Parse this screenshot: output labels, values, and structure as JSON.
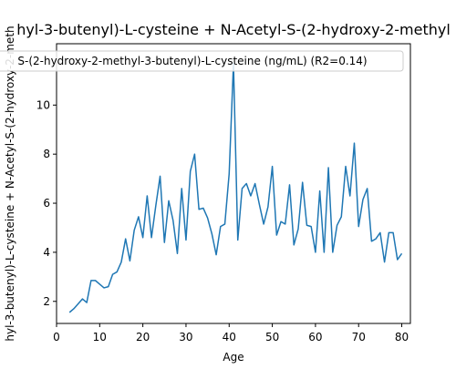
{
  "chart_data": {
    "type": "line",
    "title": "hyl-3-butenyl)-L-cysteine + N-Acetyl-S-(2-hydroxy-2-methyl",
    "xlabel": "Age",
    "ylabel": "hyl-3-butenyl)-L-cysteine + N-Acetyl-S-(2-hydroxy-2-meth",
    "xlim": [
      0,
      82
    ],
    "ylim": [
      1.1,
      12.5
    ],
    "x_ticks": [
      0,
      10,
      20,
      30,
      40,
      50,
      60,
      70,
      80
    ],
    "y_ticks": [
      2,
      4,
      6,
      8,
      10
    ],
    "grid": false,
    "legend_position": "top-right",
    "series": [
      {
        "name": "S-(2-hydroxy-2-methyl-3-butenyl)-L-cysteine (ng/mL) (R2=0.14)",
        "color": "#1f77b4",
        "x": [
          3,
          4,
          5,
          6,
          7,
          8,
          9,
          10,
          11,
          12,
          13,
          14,
          15,
          16,
          17,
          18,
          19,
          20,
          21,
          22,
          23,
          24,
          25,
          26,
          27,
          28,
          29,
          30,
          31,
          32,
          33,
          34,
          35,
          36,
          37,
          38,
          39,
          40,
          41,
          42,
          43,
          44,
          45,
          46,
          47,
          48,
          49,
          50,
          51,
          52,
          53,
          54,
          55,
          56,
          57,
          58,
          59,
          60,
          61,
          62,
          63,
          64,
          65,
          66,
          67,
          68,
          69,
          70,
          71,
          72,
          73,
          74,
          75,
          76,
          77,
          78,
          79,
          80
        ],
        "y": [
          1.55,
          1.7,
          1.9,
          2.1,
          1.95,
          2.85,
          2.85,
          2.7,
          2.55,
          2.6,
          3.1,
          3.2,
          3.6,
          4.55,
          3.65,
          4.9,
          5.45,
          4.6,
          6.3,
          4.6,
          5.9,
          7.1,
          4.4,
          6.1,
          5.3,
          3.95,
          6.6,
          4.5,
          7.3,
          8.0,
          5.75,
          5.8,
          5.4,
          4.75,
          3.9,
          5.05,
          5.15,
          7.2,
          11.7,
          4.5,
          6.6,
          6.8,
          6.3,
          6.8,
          5.95,
          5.15,
          5.85,
          7.5,
          4.7,
          5.25,
          5.15,
          6.75,
          4.3,
          4.95,
          6.85,
          5.1,
          5.05,
          4.0,
          6.5,
          4.0,
          7.45,
          4.0,
          5.1,
          5.45,
          7.5,
          6.3,
          8.45,
          5.05,
          6.15,
          6.6,
          4.45,
          4.55,
          4.8,
          3.6,
          4.8,
          4.8,
          3.7,
          3.95
        ]
      }
    ]
  }
}
